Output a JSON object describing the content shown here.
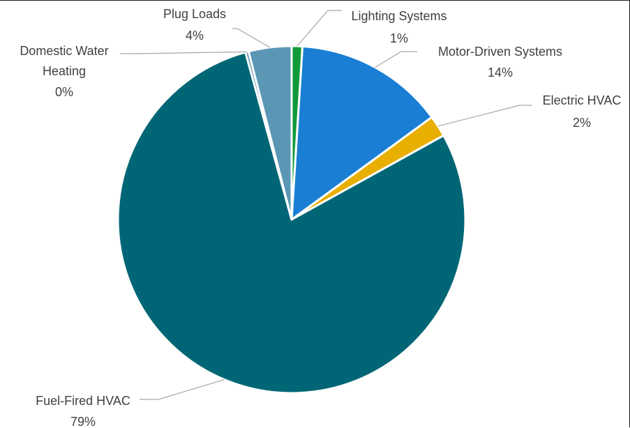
{
  "chart_data": {
    "type": "pie",
    "title": "",
    "start_angle_deg": 0,
    "direction": "clockwise",
    "legend": "none",
    "slices": [
      {
        "label": "Lighting Systems",
        "value": 1,
        "percent_label": "1%",
        "color": "#109a3a"
      },
      {
        "label": "Motor-Driven Systems",
        "value": 14,
        "percent_label": "14%",
        "color": "#1a7fd4"
      },
      {
        "label": "Electric HVAC",
        "value": 2,
        "percent_label": "2%",
        "color": "#e8ae00"
      },
      {
        "label": "Fuel-Fired HVAC",
        "value": 79,
        "percent_label": "79%",
        "color": "#006675"
      },
      {
        "label": "Domestic Water Heating",
        "label_lines": [
          "Domestic Water",
          "Heating"
        ],
        "value": 0.3,
        "percent_label": "0%",
        "color": "#4e8bab"
      },
      {
        "label": "Plug Loads",
        "value": 4,
        "percent_label": "4%",
        "color": "#5b97b5"
      }
    ]
  }
}
